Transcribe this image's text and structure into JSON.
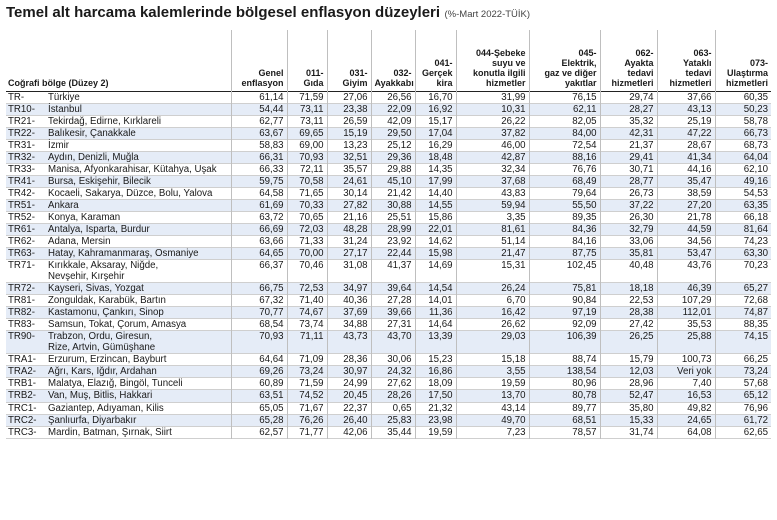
{
  "title": "Temel alt harcama kalemlerinde bölgesel enflasyon düzeyleri",
  "subtitle": "(%-Mart 2022-TÜİK)",
  "headers": [
    [
      "Coğrafi bölge (Düzey 2)"
    ],
    [
      "Genel",
      "enflasyon"
    ],
    [
      "011-",
      "Gıda"
    ],
    [
      "031-",
      "Giyim"
    ],
    [
      "032-",
      "Ayakkabı"
    ],
    [
      "041-",
      "Gerçek",
      "kira"
    ],
    [
      "044-Şebeke",
      "suyu ve",
      "konutla ilgili",
      "hizmetler"
    ],
    [
      "045-",
      "Elektrik,",
      "gaz ve diğer",
      "yakıtlar"
    ],
    [
      "062-",
      "Ayakta",
      "tedavi",
      "hizmetleri"
    ],
    [
      "063-",
      "Yataklı",
      "tedavi",
      "hizmetleri"
    ],
    [
      "073-",
      "Ulaştırma",
      "hizmetleri"
    ]
  ],
  "rows": [
    {
      "code": "TR-",
      "lines": [
        "Türkiye"
      ],
      "v": [
        "61,14",
        "71,59",
        "27,06",
        "26,56",
        "16,70",
        "31,99",
        "76,15",
        "29,74",
        "37,66",
        "60,35"
      ]
    },
    {
      "code": "TR10-",
      "lines": [
        "İstanbul"
      ],
      "v": [
        "54,44",
        "73,11",
        "23,38",
        "22,09",
        "16,92",
        "10,31",
        "62,11",
        "28,27",
        "43,13",
        "50,23"
      ]
    },
    {
      "code": "TR21-",
      "lines": [
        "Tekirdağ, Edirne, Kırklareli"
      ],
      "v": [
        "62,77",
        "73,11",
        "26,59",
        "42,09",
        "15,17",
        "26,22",
        "82,05",
        "35,32",
        "25,19",
        "58,78"
      ]
    },
    {
      "code": "TR22-",
      "lines": [
        "Balıkesir, Çanakkale"
      ],
      "v": [
        "63,67",
        "69,65",
        "15,19",
        "29,50",
        "17,04",
        "37,82",
        "84,00",
        "42,31",
        "47,22",
        "66,73"
      ]
    },
    {
      "code": "TR31-",
      "lines": [
        "İzmir"
      ],
      "v": [
        "58,83",
        "69,00",
        "13,23",
        "25,12",
        "16,29",
        "46,00",
        "72,54",
        "21,37",
        "28,67",
        "68,73"
      ]
    },
    {
      "code": "TR32-",
      "lines": [
        "Aydın, Denizli, Muğla"
      ],
      "v": [
        "66,31",
        "70,93",
        "32,51",
        "29,36",
        "18,48",
        "42,87",
        "88,16",
        "29,41",
        "41,34",
        "64,04"
      ]
    },
    {
      "code": "TR33-",
      "lines": [
        "Manisa, Afyonkarahisar, Kütahya, Uşak"
      ],
      "v": [
        "66,33",
        "72,11",
        "35,57",
        "29,88",
        "14,35",
        "32,34",
        "76,76",
        "30,71",
        "44,16",
        "62,10"
      ]
    },
    {
      "code": "TR41-",
      "lines": [
        "Bursa, Eskişehir, Bilecik"
      ],
      "v": [
        "59,75",
        "70,58",
        "24,61",
        "45,10",
        "17,99",
        "37,68",
        "68,49",
        "28,77",
        "35,47",
        "49,16"
      ]
    },
    {
      "code": "TR42-",
      "lines": [
        "Kocaeli, Sakarya, Düzce, Bolu, Yalova"
      ],
      "v": [
        "64,58",
        "71,65",
        "30,14",
        "21,42",
        "14,40",
        "43,83",
        "79,64",
        "26,73",
        "38,59",
        "54,53"
      ]
    },
    {
      "code": "TR51-",
      "lines": [
        "Ankara"
      ],
      "v": [
        "61,69",
        "70,33",
        "27,82",
        "30,88",
        "14,55",
        "59,94",
        "55,50",
        "37,22",
        "27,20",
        "63,35"
      ]
    },
    {
      "code": "TR52-",
      "lines": [
        "Konya, Karaman"
      ],
      "v": [
        "63,72",
        "70,65",
        "21,16",
        "25,51",
        "15,86",
        "3,35",
        "89,35",
        "26,30",
        "21,78",
        "66,18"
      ]
    },
    {
      "code": "TR61-",
      "lines": [
        "Antalya, Isparta, Burdur"
      ],
      "v": [
        "66,69",
        "72,03",
        "48,28",
        "28,99",
        "22,01",
        "81,61",
        "84,36",
        "32,79",
        "44,59",
        "81,64"
      ]
    },
    {
      "code": "TR62-",
      "lines": [
        "Adana, Mersin"
      ],
      "v": [
        "63,66",
        "71,33",
        "31,24",
        "23,92",
        "14,62",
        "51,14",
        "84,16",
        "33,06",
        "34,56",
        "74,23"
      ]
    },
    {
      "code": "TR63-",
      "lines": [
        "Hatay, Kahramanmaraş, Osmaniye"
      ],
      "v": [
        "64,65",
        "70,00",
        "27,17",
        "22,44",
        "15,98",
        "21,47",
        "87,75",
        "35,81",
        "53,47",
        "63,30"
      ]
    },
    {
      "code": "TR71-",
      "lines": [
        "Kırıkkale, Aksaray, Niğde,",
        "Nevşehir, Kırşehir"
      ],
      "v": [
        "66,37",
        "70,46",
        "31,08",
        "41,37",
        "14,69",
        "15,31",
        "102,45",
        "40,48",
        "43,76",
        "70,23"
      ]
    },
    {
      "code": "TR72-",
      "lines": [
        "Kayseri, Sivas, Yozgat"
      ],
      "v": [
        "66,75",
        "72,53",
        "34,97",
        "39,64",
        "14,54",
        "26,24",
        "75,81",
        "18,18",
        "46,39",
        "65,27"
      ]
    },
    {
      "code": "TR81-",
      "lines": [
        "Zonguldak, Karabük, Bartın"
      ],
      "v": [
        "67,32",
        "71,40",
        "40,36",
        "27,28",
        "14,01",
        "6,70",
        "90,84",
        "22,53",
        "107,29",
        "72,68"
      ]
    },
    {
      "code": "TR82-",
      "lines": [
        "Kastamonu, Çankırı, Sinop"
      ],
      "v": [
        "70,77",
        "74,67",
        "37,69",
        "39,66",
        "11,36",
        "16,42",
        "97,19",
        "28,38",
        "112,01",
        "74,87"
      ]
    },
    {
      "code": "TR83-",
      "lines": [
        "Samsun, Tokat, Çorum, Amasya"
      ],
      "v": [
        "68,54",
        "73,74",
        "34,88",
        "27,31",
        "14,64",
        "26,62",
        "92,09",
        "27,42",
        "35,53",
        "88,35"
      ]
    },
    {
      "code": "TR90-",
      "lines": [
        "Trabzon, Ordu, Giresun,",
        "Rize, Artvin, Gümüşhane"
      ],
      "v": [
        "70,93",
        "71,11",
        "43,73",
        "43,70",
        "13,39",
        "29,03",
        "106,39",
        "26,25",
        "25,88",
        "74,15"
      ]
    },
    {
      "code": "TRA1-",
      "lines": [
        "Erzurum, Erzincan, Bayburt"
      ],
      "v": [
        "64,64",
        "71,09",
        "28,36",
        "30,06",
        "15,23",
        "15,18",
        "88,74",
        "15,79",
        "100,73",
        "66,25"
      ]
    },
    {
      "code": "TRA2-",
      "lines": [
        "Ağrı, Kars, Iğdır, Ardahan"
      ],
      "v": [
        "69,26",
        "73,24",
        "30,97",
        "24,32",
        "16,86",
        "3,55",
        "138,54",
        "12,03",
        "Veri yok",
        "73,24"
      ]
    },
    {
      "code": "TRB1-",
      "lines": [
        "Malatya, Elazığ, Bingöl, Tunceli"
      ],
      "v": [
        "60,89",
        "71,59",
        "24,99",
        "27,62",
        "18,09",
        "19,59",
        "80,96",
        "28,96",
        "7,40",
        "57,68"
      ]
    },
    {
      "code": "TRB2-",
      "lines": [
        "Van, Muş, Bitlis, Hakkari"
      ],
      "v": [
        "63,51",
        "74,52",
        "20,45",
        "28,26",
        "17,50",
        "13,70",
        "80,78",
        "52,47",
        "16,53",
        "65,12"
      ]
    },
    {
      "code": "TRC1-",
      "lines": [
        "Gaziantep, Adıyaman, Kilis"
      ],
      "v": [
        "65,05",
        "71,67",
        "22,37",
        "0,65",
        "21,32",
        "43,14",
        "89,77",
        "35,80",
        "49,82",
        "76,96"
      ]
    },
    {
      "code": "TRC2-",
      "lines": [
        "Şanlıurfa, Diyarbakır"
      ],
      "v": [
        "65,28",
        "76,26",
        "26,40",
        "25,83",
        "23,98",
        "49,70",
        "68,51",
        "15,33",
        "24,65",
        "61,72"
      ]
    },
    {
      "code": "TRC3-",
      "lines": [
        "Mardin, Batman, Şırnak, Siirt"
      ],
      "v": [
        "62,57",
        "71,77",
        "42,06",
        "35,44",
        "19,59",
        "7,23",
        "78,57",
        "31,74",
        "64,08",
        "62,65"
      ]
    }
  ]
}
